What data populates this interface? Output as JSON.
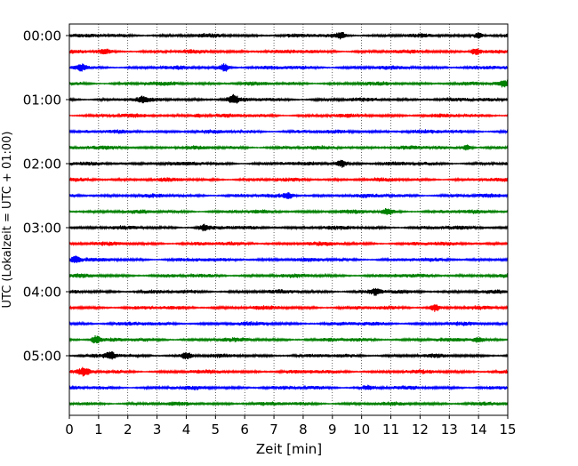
{
  "chart_data": {
    "type": "line",
    "title": "",
    "xlabel": "Zeit  [min]",
    "ylabel": "UTC (Lokalzeit = UTC + 01:00)",
    "xlim": [
      0,
      15
    ],
    "x_ticks": [
      "0",
      "1",
      "2",
      "3",
      "4",
      "5",
      "6",
      "7",
      "8",
      "9",
      "10",
      "11",
      "12",
      "13",
      "14",
      "15"
    ],
    "y_tick_labels": [
      "00:00",
      "01:00",
      "02:00",
      "03:00",
      "04:00",
      "05:00"
    ],
    "grid": "vertical dotted at each minute",
    "trace_colors": [
      "#000000",
      "#ff0000",
      "#0000ff",
      "#008000"
    ],
    "traces_count": 24,
    "minutes_per_trace": 15,
    "bursts": [
      {
        "row": 0,
        "x": 9.3,
        "a": 0.9
      },
      {
        "row": 0,
        "x": 14.0,
        "a": 1.0
      },
      {
        "row": 1,
        "x": 13.9,
        "a": 1.1
      },
      {
        "row": 1,
        "x": 1.2,
        "a": 0.6
      },
      {
        "row": 2,
        "x": 5.3,
        "a": 1.2
      },
      {
        "row": 2,
        "x": 0.4,
        "a": 0.9
      },
      {
        "row": 3,
        "x": 14.9,
        "a": 1.0
      },
      {
        "row": 4,
        "x": 5.6,
        "a": 1.2
      },
      {
        "row": 4,
        "x": 2.5,
        "a": 0.8
      },
      {
        "row": 5,
        "x": 4.4,
        "a": 0.6
      },
      {
        "row": 7,
        "x": 13.6,
        "a": 0.9
      },
      {
        "row": 8,
        "x": 9.3,
        "a": 1.2
      },
      {
        "row": 10,
        "x": 7.5,
        "a": 0.8
      },
      {
        "row": 11,
        "x": 10.9,
        "a": 1.0
      },
      {
        "row": 12,
        "x": 4.6,
        "a": 0.9
      },
      {
        "row": 14,
        "x": 0.2,
        "a": 1.0
      },
      {
        "row": 16,
        "x": 10.5,
        "a": 1.0
      },
      {
        "row": 17,
        "x": 12.5,
        "a": 1.1
      },
      {
        "row": 19,
        "x": 0.9,
        "a": 1.2
      },
      {
        "row": 19,
        "x": 14.0,
        "a": 0.8
      },
      {
        "row": 20,
        "x": 1.4,
        "a": 1.1
      },
      {
        "row": 20,
        "x": 4.0,
        "a": 1.0
      },
      {
        "row": 21,
        "x": 0.5,
        "a": 1.2
      },
      {
        "row": 22,
        "x": 10.2,
        "a": 0.6
      }
    ]
  }
}
